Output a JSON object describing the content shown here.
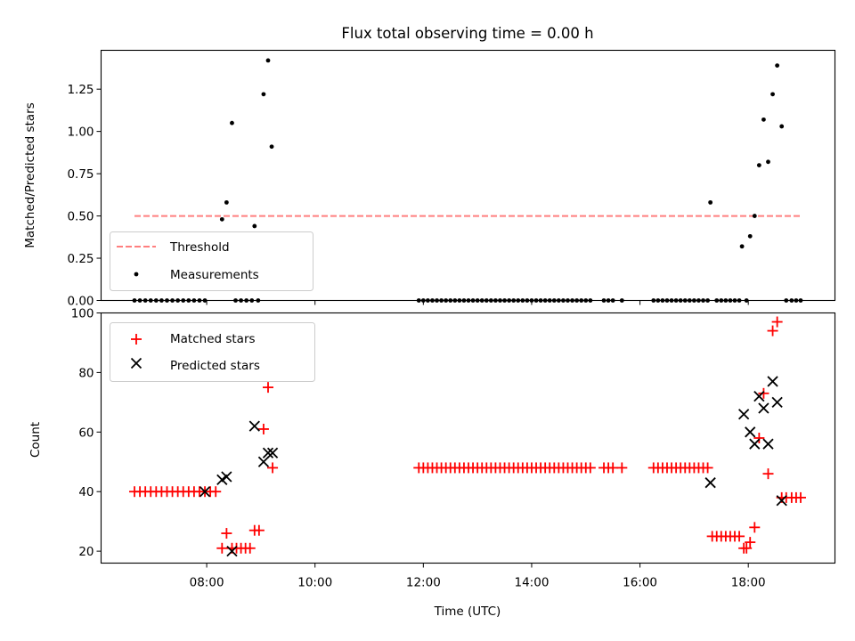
{
  "chart_data": [
    {
      "type": "scatter",
      "title": "Flux total observing time = 0.00 h",
      "ylabel": "Matched/Predicted stars",
      "ylim": [
        0,
        1.48
      ],
      "xlim_hours": [
        6.05,
        19.6
      ],
      "y_ticks": [
        "0.00",
        "0.25",
        "0.50",
        "0.75",
        "1.00",
        "1.25"
      ],
      "legend_position": "lower-left",
      "legend": [
        "Threshold",
        "Measurements"
      ],
      "threshold": {
        "value": 0.5,
        "x_range": [
          "06:40",
          "18:58"
        ],
        "color": "#ff7f7f",
        "style": "dashed"
      },
      "series": [
        {
          "name": "Measurements",
          "marker": "dot",
          "color": "#000000",
          "points": [
            [
              "06:40",
              0
            ],
            [
              "06:46",
              0
            ],
            [
              "06:52",
              0
            ],
            [
              "06:58",
              0
            ],
            [
              "07:04",
              0
            ],
            [
              "07:10",
              0
            ],
            [
              "07:16",
              0
            ],
            [
              "07:22",
              0
            ],
            [
              "07:28",
              0
            ],
            [
              "07:34",
              0
            ],
            [
              "07:40",
              0
            ],
            [
              "07:46",
              0
            ],
            [
              "07:52",
              0
            ],
            [
              "07:58",
              0
            ],
            [
              "08:17",
              0.48
            ],
            [
              "08:22",
              0.58
            ],
            [
              "08:28",
              1.05
            ],
            [
              "08:32",
              0
            ],
            [
              "08:38",
              0
            ],
            [
              "08:44",
              0
            ],
            [
              "08:50",
              0
            ],
            [
              "08:53",
              0.44
            ],
            [
              "08:57",
              0
            ],
            [
              "09:03",
              1.22
            ],
            [
              "09:08",
              1.42
            ],
            [
              "09:12",
              0.91
            ],
            [
              "11:55",
              0
            ],
            [
              "12:00",
              0
            ],
            [
              "12:05",
              0
            ],
            [
              "12:10",
              0
            ],
            [
              "12:15",
              0
            ],
            [
              "12:20",
              0
            ],
            [
              "12:25",
              0
            ],
            [
              "12:30",
              0
            ],
            [
              "12:35",
              0
            ],
            [
              "12:40",
              0
            ],
            [
              "12:45",
              0
            ],
            [
              "12:50",
              0
            ],
            [
              "12:55",
              0
            ],
            [
              "13:00",
              0
            ],
            [
              "13:05",
              0
            ],
            [
              "13:10",
              0
            ],
            [
              "13:15",
              0
            ],
            [
              "13:20",
              0
            ],
            [
              "13:25",
              0
            ],
            [
              "13:30",
              0
            ],
            [
              "13:35",
              0
            ],
            [
              "13:40",
              0
            ],
            [
              "13:45",
              0
            ],
            [
              "13:50",
              0
            ],
            [
              "13:55",
              0
            ],
            [
              "14:00",
              0
            ],
            [
              "14:05",
              0
            ],
            [
              "14:10",
              0
            ],
            [
              "14:15",
              0
            ],
            [
              "14:20",
              0
            ],
            [
              "14:25",
              0
            ],
            [
              "14:30",
              0
            ],
            [
              "14:35",
              0
            ],
            [
              "14:40",
              0
            ],
            [
              "14:45",
              0
            ],
            [
              "14:50",
              0
            ],
            [
              "14:55",
              0
            ],
            [
              "15:00",
              0
            ],
            [
              "15:05",
              0
            ],
            [
              "15:20",
              0
            ],
            [
              "15:25",
              0
            ],
            [
              "15:30",
              0
            ],
            [
              "15:40",
              0
            ],
            [
              "16:15",
              0
            ],
            [
              "16:20",
              0
            ],
            [
              "16:25",
              0
            ],
            [
              "16:30",
              0
            ],
            [
              "16:35",
              0
            ],
            [
              "16:40",
              0
            ],
            [
              "16:45",
              0
            ],
            [
              "16:50",
              0
            ],
            [
              "16:55",
              0
            ],
            [
              "17:00",
              0
            ],
            [
              "17:05",
              0
            ],
            [
              "17:10",
              0
            ],
            [
              "17:15",
              0
            ],
            [
              "17:18",
              0.58
            ],
            [
              "17:25",
              0
            ],
            [
              "17:30",
              0
            ],
            [
              "17:35",
              0
            ],
            [
              "17:40",
              0
            ],
            [
              "17:45",
              0
            ],
            [
              "17:50",
              0
            ],
            [
              "17:53",
              0.32
            ],
            [
              "17:58",
              0
            ],
            [
              "18:02",
              0.38
            ],
            [
              "18:07",
              0.5
            ],
            [
              "18:12",
              0.8
            ],
            [
              "18:17",
              1.07
            ],
            [
              "18:22",
              0.82
            ],
            [
              "18:27",
              1.22
            ],
            [
              "18:32",
              1.39
            ],
            [
              "18:37",
              1.03
            ],
            [
              "18:42",
              0
            ],
            [
              "18:48",
              0
            ],
            [
              "18:53",
              0
            ],
            [
              "18:58",
              0
            ]
          ]
        }
      ]
    },
    {
      "type": "scatter",
      "xlabel": "Time (UTC)",
      "ylabel": "Count",
      "ylim": [
        16,
        100
      ],
      "xlim_hours": [
        6.05,
        19.6
      ],
      "y_ticks": [
        "20",
        "40",
        "60",
        "80",
        "100"
      ],
      "x_ticks": [
        "08:00",
        "10:00",
        "12:00",
        "14:00",
        "16:00",
        "18:00"
      ],
      "legend_position": "upper-left",
      "legend": [
        "Matched stars",
        "Predicted stars"
      ],
      "series": [
        {
          "name": "Matched stars",
          "marker": "plus",
          "color": "#ff0000",
          "points": [
            [
              "06:40",
              40
            ],
            [
              "06:46",
              40
            ],
            [
              "06:52",
              40
            ],
            [
              "06:58",
              40
            ],
            [
              "07:04",
              40
            ],
            [
              "07:10",
              40
            ],
            [
              "07:16",
              40
            ],
            [
              "07:22",
              40
            ],
            [
              "07:28",
              40
            ],
            [
              "07:34",
              40
            ],
            [
              "07:40",
              40
            ],
            [
              "07:46",
              40
            ],
            [
              "07:52",
              40
            ],
            [
              "07:58",
              40
            ],
            [
              "08:04",
              40
            ],
            [
              "08:10",
              40
            ],
            [
              "08:17",
              21
            ],
            [
              "08:22",
              26
            ],
            [
              "08:28",
              21
            ],
            [
              "08:33",
              21
            ],
            [
              "08:38",
              21
            ],
            [
              "08:43",
              21
            ],
            [
              "08:48",
              21
            ],
            [
              "08:53",
              27
            ],
            [
              "08:58",
              27
            ],
            [
              "09:03",
              61
            ],
            [
              "09:08",
              75
            ],
            [
              "09:13",
              48
            ],
            [
              "11:55",
              48
            ],
            [
              "12:00",
              48
            ],
            [
              "12:05",
              48
            ],
            [
              "12:10",
              48
            ],
            [
              "12:15",
              48
            ],
            [
              "12:20",
              48
            ],
            [
              "12:25",
              48
            ],
            [
              "12:30",
              48
            ],
            [
              "12:35",
              48
            ],
            [
              "12:40",
              48
            ],
            [
              "12:45",
              48
            ],
            [
              "12:50",
              48
            ],
            [
              "12:55",
              48
            ],
            [
              "13:00",
              48
            ],
            [
              "13:05",
              48
            ],
            [
              "13:10",
              48
            ],
            [
              "13:15",
              48
            ],
            [
              "13:20",
              48
            ],
            [
              "13:25",
              48
            ],
            [
              "13:30",
              48
            ],
            [
              "13:35",
              48
            ],
            [
              "13:40",
              48
            ],
            [
              "13:45",
              48
            ],
            [
              "13:50",
              48
            ],
            [
              "13:55",
              48
            ],
            [
              "14:00",
              48
            ],
            [
              "14:05",
              48
            ],
            [
              "14:10",
              48
            ],
            [
              "14:15",
              48
            ],
            [
              "14:20",
              48
            ],
            [
              "14:25",
              48
            ],
            [
              "14:30",
              48
            ],
            [
              "14:35",
              48
            ],
            [
              "14:40",
              48
            ],
            [
              "14:45",
              48
            ],
            [
              "14:50",
              48
            ],
            [
              "14:55",
              48
            ],
            [
              "15:00",
              48
            ],
            [
              "15:05",
              48
            ],
            [
              "15:20",
              48
            ],
            [
              "15:25",
              48
            ],
            [
              "15:30",
              48
            ],
            [
              "15:40",
              48
            ],
            [
              "16:15",
              48
            ],
            [
              "16:20",
              48
            ],
            [
              "16:25",
              48
            ],
            [
              "16:30",
              48
            ],
            [
              "16:35",
              48
            ],
            [
              "16:40",
              48
            ],
            [
              "16:45",
              48
            ],
            [
              "16:50",
              48
            ],
            [
              "16:55",
              48
            ],
            [
              "17:00",
              48
            ],
            [
              "17:05",
              48
            ],
            [
              "17:10",
              48
            ],
            [
              "17:15",
              48
            ],
            [
              "17:20",
              25
            ],
            [
              "17:25",
              25
            ],
            [
              "17:30",
              25
            ],
            [
              "17:35",
              25
            ],
            [
              "17:40",
              25
            ],
            [
              "17:45",
              25
            ],
            [
              "17:50",
              25
            ],
            [
              "17:55",
              21
            ],
            [
              "17:58",
              21
            ],
            [
              "18:02",
              23
            ],
            [
              "18:07",
              28
            ],
            [
              "18:12",
              58
            ],
            [
              "18:17",
              73
            ],
            [
              "18:22",
              46
            ],
            [
              "18:27",
              94
            ],
            [
              "18:32",
              97
            ],
            [
              "18:37",
              38
            ],
            [
              "18:42",
              38
            ],
            [
              "18:48",
              38
            ],
            [
              "18:53",
              38
            ],
            [
              "18:58",
              38
            ]
          ]
        },
        {
          "name": "Predicted stars",
          "marker": "x",
          "color": "#000000",
          "points": [
            [
              "07:58",
              40
            ],
            [
              "08:17",
              44
            ],
            [
              "08:22",
              45
            ],
            [
              "08:28",
              20
            ],
            [
              "08:53",
              62
            ],
            [
              "09:03",
              50
            ],
            [
              "09:08",
              53
            ],
            [
              "09:13",
              53
            ],
            [
              "17:18",
              43
            ],
            [
              "17:55",
              66
            ],
            [
              "18:02",
              60
            ],
            [
              "18:07",
              56
            ],
            [
              "18:12",
              72
            ],
            [
              "18:17",
              68
            ],
            [
              "18:22",
              56
            ],
            [
              "18:27",
              77
            ],
            [
              "18:32",
              70
            ],
            [
              "18:37",
              37
            ]
          ]
        }
      ]
    }
  ]
}
